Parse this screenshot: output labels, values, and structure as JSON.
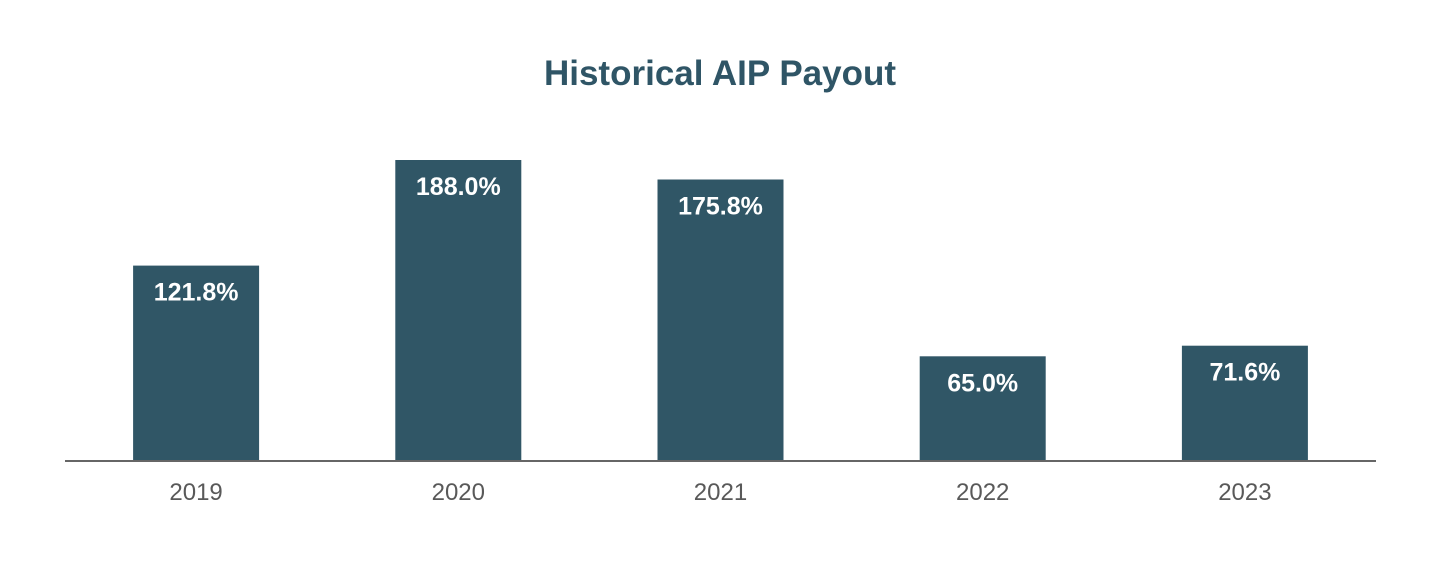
{
  "chart_data": {
    "type": "bar",
    "title": "Historical AIP Payout",
    "categories": [
      "2019",
      "2020",
      "2021",
      "2022",
      "2023"
    ],
    "values": [
      121.8,
      188.0,
      175.8,
      65.0,
      71.6
    ],
    "data_labels": [
      "121.8%",
      "188.0%",
      "175.8%",
      "65.0%",
      "71.6%"
    ],
    "xlabel": "",
    "ylabel": "",
    "ylim": [
      0,
      188.0
    ],
    "grid": false,
    "legend": "none",
    "colors": {
      "bar": "#305666",
      "axis": "#666666",
      "title": "#2f5566",
      "tick_text": "#595959",
      "label_text": "#ffffff"
    }
  }
}
